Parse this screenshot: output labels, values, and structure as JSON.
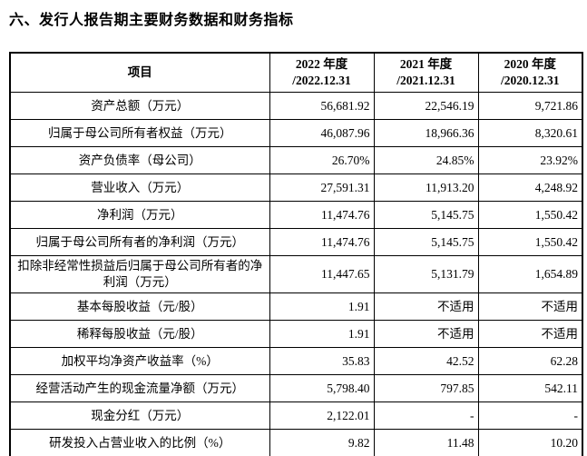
{
  "title": "六、发行人报告期主要财务数据和财务指标",
  "table": {
    "item_header": "项目",
    "columns": [
      {
        "line1": "2022 年度",
        "line2": "/2022.12.31"
      },
      {
        "line1": "2021 年度",
        "line2": "/2021.12.31"
      },
      {
        "line1": "2020 年度",
        "line2": "/2020.12.31"
      }
    ],
    "rows": [
      {
        "item": "资产总额（万元）",
        "values": [
          "56,681.92",
          "22,546.19",
          "9,721.86"
        ]
      },
      {
        "item": "归属于母公司所有者权益（万元）",
        "values": [
          "46,087.96",
          "18,966.36",
          "8,320.61"
        ]
      },
      {
        "item": "资产负债率（母公司）",
        "values": [
          "26.70%",
          "24.85%",
          "23.92%"
        ]
      },
      {
        "item": "营业收入（万元）",
        "values": [
          "27,591.31",
          "11,913.20",
          "4,248.92"
        ]
      },
      {
        "item": "净利润（万元）",
        "values": [
          "11,474.76",
          "5,145.75",
          "1,550.42"
        ]
      },
      {
        "item": "归属于母公司所有者的净利润（万元）",
        "values": [
          "11,474.76",
          "5,145.75",
          "1,550.42"
        ]
      },
      {
        "item": "扣除非经常性损益后归属于母公司所有者的净利润（万元）",
        "values": [
          "11,447.65",
          "5,131.79",
          "1,654.89"
        ]
      },
      {
        "item": "基本每股收益（元/股）",
        "values": [
          "1.91",
          "不适用",
          "不适用"
        ]
      },
      {
        "item": "稀释每股收益（元/股）",
        "values": [
          "1.91",
          "不适用",
          "不适用"
        ]
      },
      {
        "item": "加权平均净资产收益率（%）",
        "values": [
          "35.83",
          "42.52",
          "62.28"
        ]
      },
      {
        "item": "经营活动产生的现金流量净额（万元）",
        "values": [
          "5,798.40",
          "797.85",
          "542.11"
        ]
      },
      {
        "item": "现金分红（万元）",
        "values": [
          "2,122.01",
          "-",
          "-"
        ]
      },
      {
        "item": "研发投入占营业收入的比例（%）",
        "values": [
          "9.82",
          "11.48",
          "10.20"
        ]
      }
    ]
  }
}
